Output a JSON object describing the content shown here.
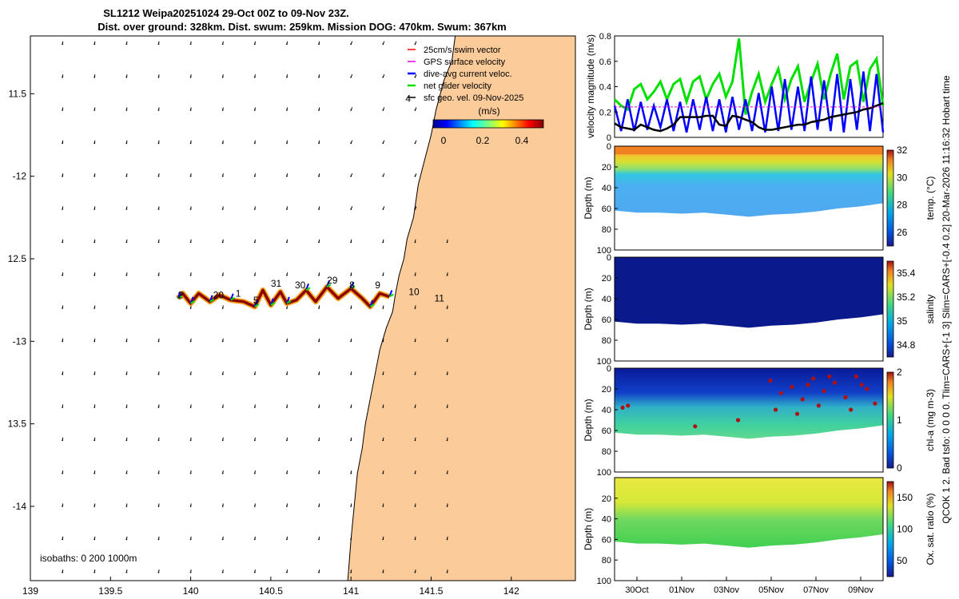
{
  "header": {
    "line1": "SL1212 Weipa20251024 29-Oct 00Z to 09-Nov 23Z.",
    "line2": "Dist. over ground: 328km. Dist. swum: 259km. Mission DOG: 470km. Swum: 367km"
  },
  "side_label": "QCOK 1  2. Bad tsfo: 0  0  0  0. Tlim=CARS+[-1 3] Slim=CARS+[-0.4 0.2] 20-Mar-2026 11:16:32 Hobart time",
  "colors": {
    "land": "#FBCB99",
    "track_dark": "#8B0000",
    "track_orange": "#F6A623",
    "dive_blue": "#0000FF",
    "net_green": "#00E000",
    "gps_magenta": "#E000E0",
    "swim_red": "#FF0000"
  },
  "map": {
    "isobaths_label": "isobaths: 0   200   1000m",
    "colorbar_label": "(m/s)",
    "colorbar_ticks": [
      "0",
      "0.2",
      "0.4"
    ],
    "legend": [
      "25cm/s swim vector",
      "GPS surface velocity",
      "dive-avg current veloc.",
      "net glider velocity",
      "sfc geo. vel. 09-Nov-2025"
    ],
    "day_labels": [
      {
        "text": "4",
        "lon": 141.34,
        "lat": -11.55
      },
      {
        "text": "2",
        "lon": 139.92,
        "lat": -12.74
      },
      {
        "text": "20",
        "lon": 140.14,
        "lat": -12.74
      },
      {
        "text": "1",
        "lon": 140.28,
        "lat": -12.73
      },
      {
        "text": "5",
        "lon": 140.39,
        "lat": -12.77
      },
      {
        "text": "31",
        "lon": 140.5,
        "lat": -12.67
      },
      {
        "text": "30",
        "lon": 140.65,
        "lat": -12.68
      },
      {
        "text": "29",
        "lon": 140.85,
        "lat": -12.65
      },
      {
        "text": "8",
        "lon": 140.99,
        "lat": -12.68
      },
      {
        "text": "9",
        "lon": 141.15,
        "lat": -12.68
      },
      {
        "text": "10",
        "lon": 141.36,
        "lat": -12.72
      },
      {
        "text": "11",
        "lon": 141.52,
        "lat": -12.76
      }
    ]
  },
  "chart_data": [
    {
      "type": "map",
      "title": "SL1212 Weipa20251024 29-Oct 00Z to 09-Nov 23Z.",
      "xlim": [
        139,
        142.4
      ],
      "ylim": [
        -14.45,
        -11.15
      ],
      "x_ticks": [
        139,
        139.5,
        140,
        140.5,
        141,
        141.5,
        142
      ],
      "x_tick_labels": [
        "139",
        "139.5",
        "140",
        "140.5",
        "141",
        "141.5",
        "142"
      ],
      "y_ticks": [
        -11.5,
        -12,
        -12.5,
        -13,
        -13.5,
        -14
      ],
      "y_tick_labels": [
        "11.5",
        "-12",
        "12.5",
        "-13",
        "13.5",
        "-14"
      ],
      "coast": [
        [
          142.4,
          -11.15
        ],
        [
          141.65,
          -11.15
        ],
        [
          141.63,
          -11.3
        ],
        [
          141.58,
          -11.42
        ],
        [
          141.53,
          -11.6
        ],
        [
          141.5,
          -11.75
        ],
        [
          141.46,
          -11.9
        ],
        [
          141.42,
          -12.05
        ],
        [
          141.39,
          -12.25
        ],
        [
          141.35,
          -12.38
        ],
        [
          141.33,
          -12.5
        ],
        [
          141.3,
          -12.6
        ],
        [
          141.28,
          -12.7
        ],
        [
          141.26,
          -12.82
        ],
        [
          141.22,
          -12.92
        ],
        [
          141.18,
          -13.05
        ],
        [
          141.15,
          -13.2
        ],
        [
          141.12,
          -13.35
        ],
        [
          141.09,
          -13.5
        ],
        [
          141.07,
          -13.65
        ],
        [
          141.04,
          -13.8
        ],
        [
          141.02,
          -14
        ],
        [
          141.0,
          -14.2
        ],
        [
          140.98,
          -14.45
        ],
        [
          142.4,
          -14.45
        ]
      ],
      "track": [
        [
          139.92,
          -12.74
        ],
        [
          139.95,
          -12.71
        ],
        [
          140.0,
          -12.77
        ],
        [
          140.05,
          -12.71
        ],
        [
          140.12,
          -12.76
        ],
        [
          140.18,
          -12.72
        ],
        [
          140.25,
          -12.75
        ],
        [
          140.33,
          -12.76
        ],
        [
          140.4,
          -12.79
        ],
        [
          140.45,
          -12.69
        ],
        [
          140.5,
          -12.78
        ],
        [
          140.56,
          -12.7
        ],
        [
          140.6,
          -12.77
        ],
        [
          140.66,
          -12.75
        ],
        [
          140.72,
          -12.69
        ],
        [
          140.78,
          -12.76
        ],
        [
          140.85,
          -12.67
        ],
        [
          140.92,
          -12.74
        ],
        [
          141.0,
          -12.68
        ],
        [
          141.07,
          -12.74
        ],
        [
          141.12,
          -12.79
        ],
        [
          141.18,
          -12.71
        ],
        [
          141.24,
          -12.73
        ]
      ],
      "legend": [
        "25cm/s swim vector",
        "GPS surface velocity",
        "dive-avg current veloc.",
        "net glider velocity",
        "sfc geo. vel. 09-Nov-2025"
      ]
    },
    {
      "type": "line",
      "ylabel": "velocity magnitude (m/s)",
      "ylim": [
        0,
        0.8
      ],
      "y_ticks": [
        0,
        0.2,
        0.4,
        0.6,
        0.8
      ],
      "y_tick_labels": [
        "0",
        "0.2",
        "0.4",
        "0.6",
        "0.8"
      ],
      "series": [
        {
          "name": "net glider velocity",
          "color": "#00E000",
          "values": [
            0.3,
            0.25,
            0.22,
            0.38,
            0.42,
            0.3,
            0.36,
            0.44,
            0.3,
            0.42,
            0.46,
            0.28,
            0.44,
            0.48,
            0.3,
            0.42,
            0.5,
            0.32,
            0.44,
            0.78,
            0.18,
            0.36,
            0.5,
            0.28,
            0.42,
            0.54,
            0.3,
            0.46,
            0.56,
            0.28,
            0.44,
            0.58,
            0.3,
            0.5,
            0.66,
            0.3,
            0.56,
            0.6,
            0.28,
            0.54,
            0.62,
            0.25
          ]
        },
        {
          "name": "dive-avg current veloc.",
          "color": "#0000FF",
          "values": [
            0.25,
            0.05,
            0.3,
            0.05,
            0.28,
            0.06,
            0.25,
            0.08,
            0.3,
            0.05,
            0.28,
            0.04,
            0.3,
            0.06,
            0.32,
            0.05,
            0.3,
            0.04,
            0.32,
            0.06,
            0.3,
            0.05,
            0.35,
            0.04,
            0.4,
            0.05,
            0.46,
            0.06,
            0.4,
            0.05,
            0.48,
            0.06,
            0.45,
            0.05,
            0.5,
            0.04,
            0.46,
            0.06,
            0.52,
            0.05,
            0.5,
            0.04
          ]
        },
        {
          "name": "sfc geo. vel.",
          "color": "#000000",
          "values": [
            0.11,
            0.08,
            0.07,
            0.06,
            0.1,
            0.08,
            0.06,
            0.05,
            0.07,
            0.1,
            0.16,
            0.16,
            0.16,
            0.16,
            0.17,
            0.17,
            0.1,
            0.09,
            0.17,
            0.16,
            0.14,
            0.12,
            0.08,
            0.06,
            0.06,
            0.07,
            0.08,
            0.09,
            0.1,
            0.1,
            0.12,
            0.13,
            0.14,
            0.16,
            0.17,
            0.18,
            0.19,
            0.2,
            0.22,
            0.23,
            0.25,
            0.27
          ]
        },
        {
          "name": "GPS surface velocity",
          "color": "#E000E0",
          "values": [
            0.24,
            0.24,
            0.24,
            0.24,
            0.24,
            0.24,
            0.24,
            0.24,
            0.24,
            0.24,
            0.24,
            0.24,
            0.24,
            0.24,
            0.24,
            0.24,
            0.24,
            0.24,
            0.24,
            0.24,
            0.24,
            0.24,
            0.24,
            0.24,
            0.24,
            0.24,
            0.24,
            0.24,
            0.24,
            0.24,
            0.24,
            0.24,
            0.24,
            0.24,
            0.24,
            0.24,
            0.24,
            0.24,
            0.24,
            0.24,
            0.24,
            0.24
          ]
        }
      ]
    },
    {
      "type": "heatmap",
      "ylabel": "Depth (m)",
      "ylim": [
        100,
        0
      ],
      "y_ticks": [
        0,
        20,
        40,
        60,
        80,
        100
      ],
      "colorbar_label": "temp. (°C)",
      "colorbar_ticks": [
        "26",
        "28",
        "30",
        "32"
      ],
      "clim": [
        25,
        32
      ]
    },
    {
      "type": "heatmap",
      "ylabel": "Depth (m)",
      "ylim": [
        100,
        0
      ],
      "y_ticks": [
        0,
        20,
        40,
        60,
        80,
        100
      ],
      "colorbar_label": "salinity",
      "colorbar_ticks": [
        "34.8",
        "35",
        "35.2",
        "35.4"
      ],
      "clim": [
        34.7,
        35.5
      ]
    },
    {
      "type": "heatmap",
      "ylabel": "Depth (m)",
      "ylim": [
        100,
        0
      ],
      "y_ticks": [
        0,
        20,
        40,
        60,
        80,
        100
      ],
      "colorbar_label": "chl-a (mg m-3)",
      "colorbar_ticks": [
        "0",
        "1",
        "2"
      ],
      "clim": [
        0,
        2
      ]
    },
    {
      "type": "heatmap",
      "ylabel": "Depth (m)",
      "ylim": [
        100,
        0
      ],
      "y_ticks": [
        20,
        40,
        60,
        80,
        100
      ],
      "colorbar_label": "Ox. sat. ratio (%)",
      "colorbar_ticks": [
        "50",
        "100",
        "150"
      ],
      "clim": [
        25,
        175
      ],
      "x_tick_labels": [
        "30Oct",
        "01Nov",
        "03Nov",
        "05Nov",
        "07Nov",
        "09Nov"
      ]
    }
  ]
}
